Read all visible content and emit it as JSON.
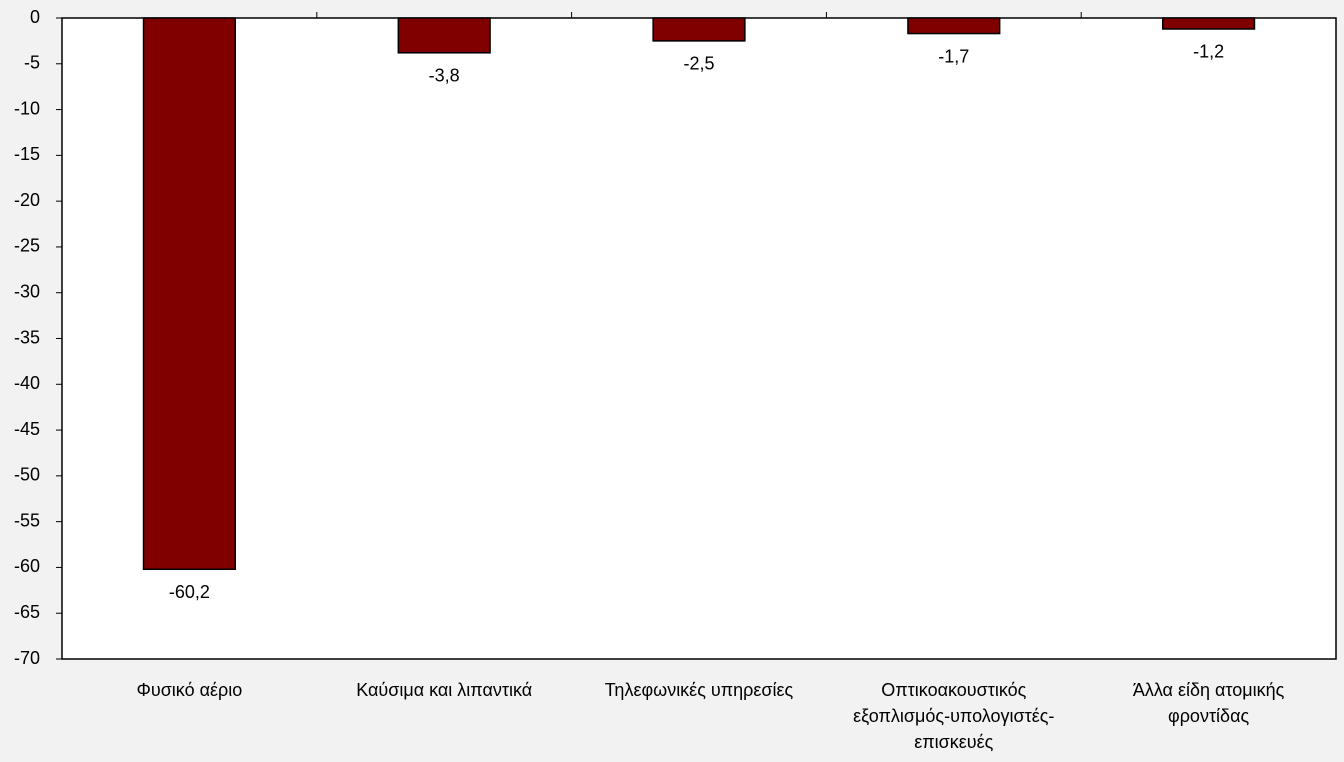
{
  "chart_data": {
    "type": "bar",
    "categories": [
      "Φυσικό αέριο",
      "Καύσιμα και λιπαντικά",
      "Τηλεφωνικές υπηρεσίες",
      "Οπτικοακουστικός εξοπλισμός-υπολογιστές-επισκευές",
      "Άλλα είδη ατομικής φροντίδας"
    ],
    "values": [
      -60.2,
      -3.8,
      -2.5,
      -1.7,
      -1.2
    ],
    "value_labels": [
      "-60,2",
      "-3,8",
      "-2,5",
      "-1,7",
      "-1,2"
    ],
    "color": "#800000",
    "ylim": [
      -70,
      0
    ],
    "yticks": [
      0,
      -5,
      -10,
      -15,
      -20,
      -25,
      -30,
      -35,
      -40,
      -45,
      -50,
      -55,
      -60,
      -65,
      -70
    ],
    "grid": false
  }
}
